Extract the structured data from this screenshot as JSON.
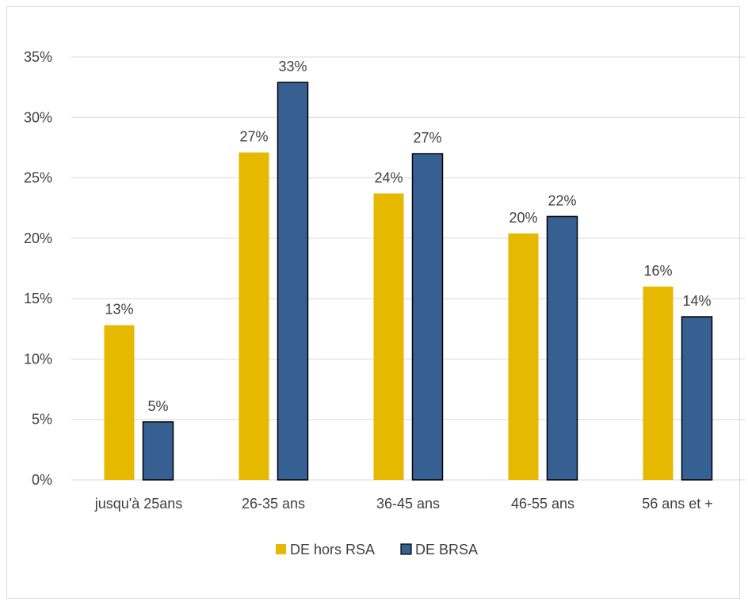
{
  "chart_data": {
    "type": "bar",
    "title": "",
    "xlabel": "",
    "ylabel": "",
    "categories": [
      "jusqu'à 25ans",
      "26-35 ans",
      "36-45 ans",
      "46-55 ans",
      "56 ans et +"
    ],
    "series": [
      {
        "name": "DE hors RSA",
        "color": "#e6b800",
        "values": [
          12.8,
          27.1,
          23.7,
          20.4,
          16.0
        ],
        "labels": [
          "13%",
          "27%",
          "24%",
          "20%",
          "16%"
        ]
      },
      {
        "name": "DE BRSA",
        "color": "#376092",
        "values": [
          4.8,
          32.9,
          27.0,
          21.8,
          13.5
        ],
        "labels": [
          "5%",
          "33%",
          "27%",
          "22%",
          "14%"
        ]
      }
    ],
    "ylim": [
      0,
      35
    ],
    "yticks": [
      0,
      5,
      10,
      15,
      20,
      25,
      30,
      35
    ],
    "ytick_labels": [
      "0%",
      "5%",
      "10%",
      "15%",
      "20%",
      "25%",
      "30%",
      "35%"
    ],
    "grid": true,
    "legend_position": "bottom"
  }
}
